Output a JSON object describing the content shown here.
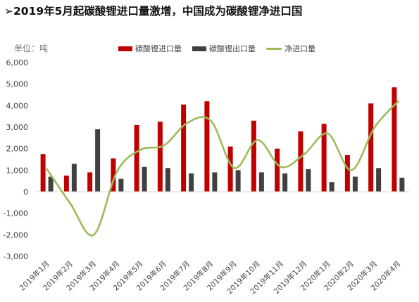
{
  "title": "➢2019年5月起碳酸锂进口量激增，中国成为碳酸锂净进口国",
  "unit_label": "单位：吨",
  "colors": {
    "import": "#c00000",
    "export": "#404040",
    "net": "#9bbb59"
  },
  "chart_data": {
    "type": "bar",
    "categories": [
      "2019年1月",
      "2019年2月",
      "2019年3月",
      "2019年4月",
      "2019年5月",
      "2019年6月",
      "2019年7月",
      "2019年8月",
      "2019年9月",
      "2019年10月",
      "2019年11月",
      "2019年12月",
      "2020年1月",
      "2020年2月",
      "2020年3月",
      "2020年4月"
    ],
    "series": [
      {
        "name": "碳酸锂进口量",
        "kind": "bar",
        "values": [
          1750,
          750,
          900,
          1550,
          3100,
          3250,
          4050,
          4200,
          2100,
          3300,
          2000,
          2800,
          3150,
          1700,
          4100,
          4850
        ]
      },
      {
        "name": "碳酸锂出口量",
        "kind": "bar",
        "values": [
          700,
          1300,
          2900,
          600,
          1150,
          1100,
          850,
          900,
          1000,
          900,
          850,
          1050,
          450,
          700,
          1100,
          650
        ]
      },
      {
        "name": "净进口量",
        "kind": "line",
        "values": [
          1050,
          -550,
          -2000,
          950,
          1950,
          2150,
          3200,
          3300,
          1100,
          2400,
          1150,
          1750,
          2700,
          1000,
          3000,
          4200
        ]
      }
    ],
    "ylim": [
      -3000,
      6000
    ],
    "yticks": [
      -3000,
      -2000,
      -1000,
      0,
      1000,
      2000,
      3000,
      4000,
      5000,
      6000
    ],
    "ytick_labels": [
      "-3,000",
      "-2,000",
      "-1,000",
      "0",
      "1,000",
      "2,000",
      "3,000",
      "4,000",
      "5,000",
      "6,000"
    ],
    "legend": "top"
  }
}
